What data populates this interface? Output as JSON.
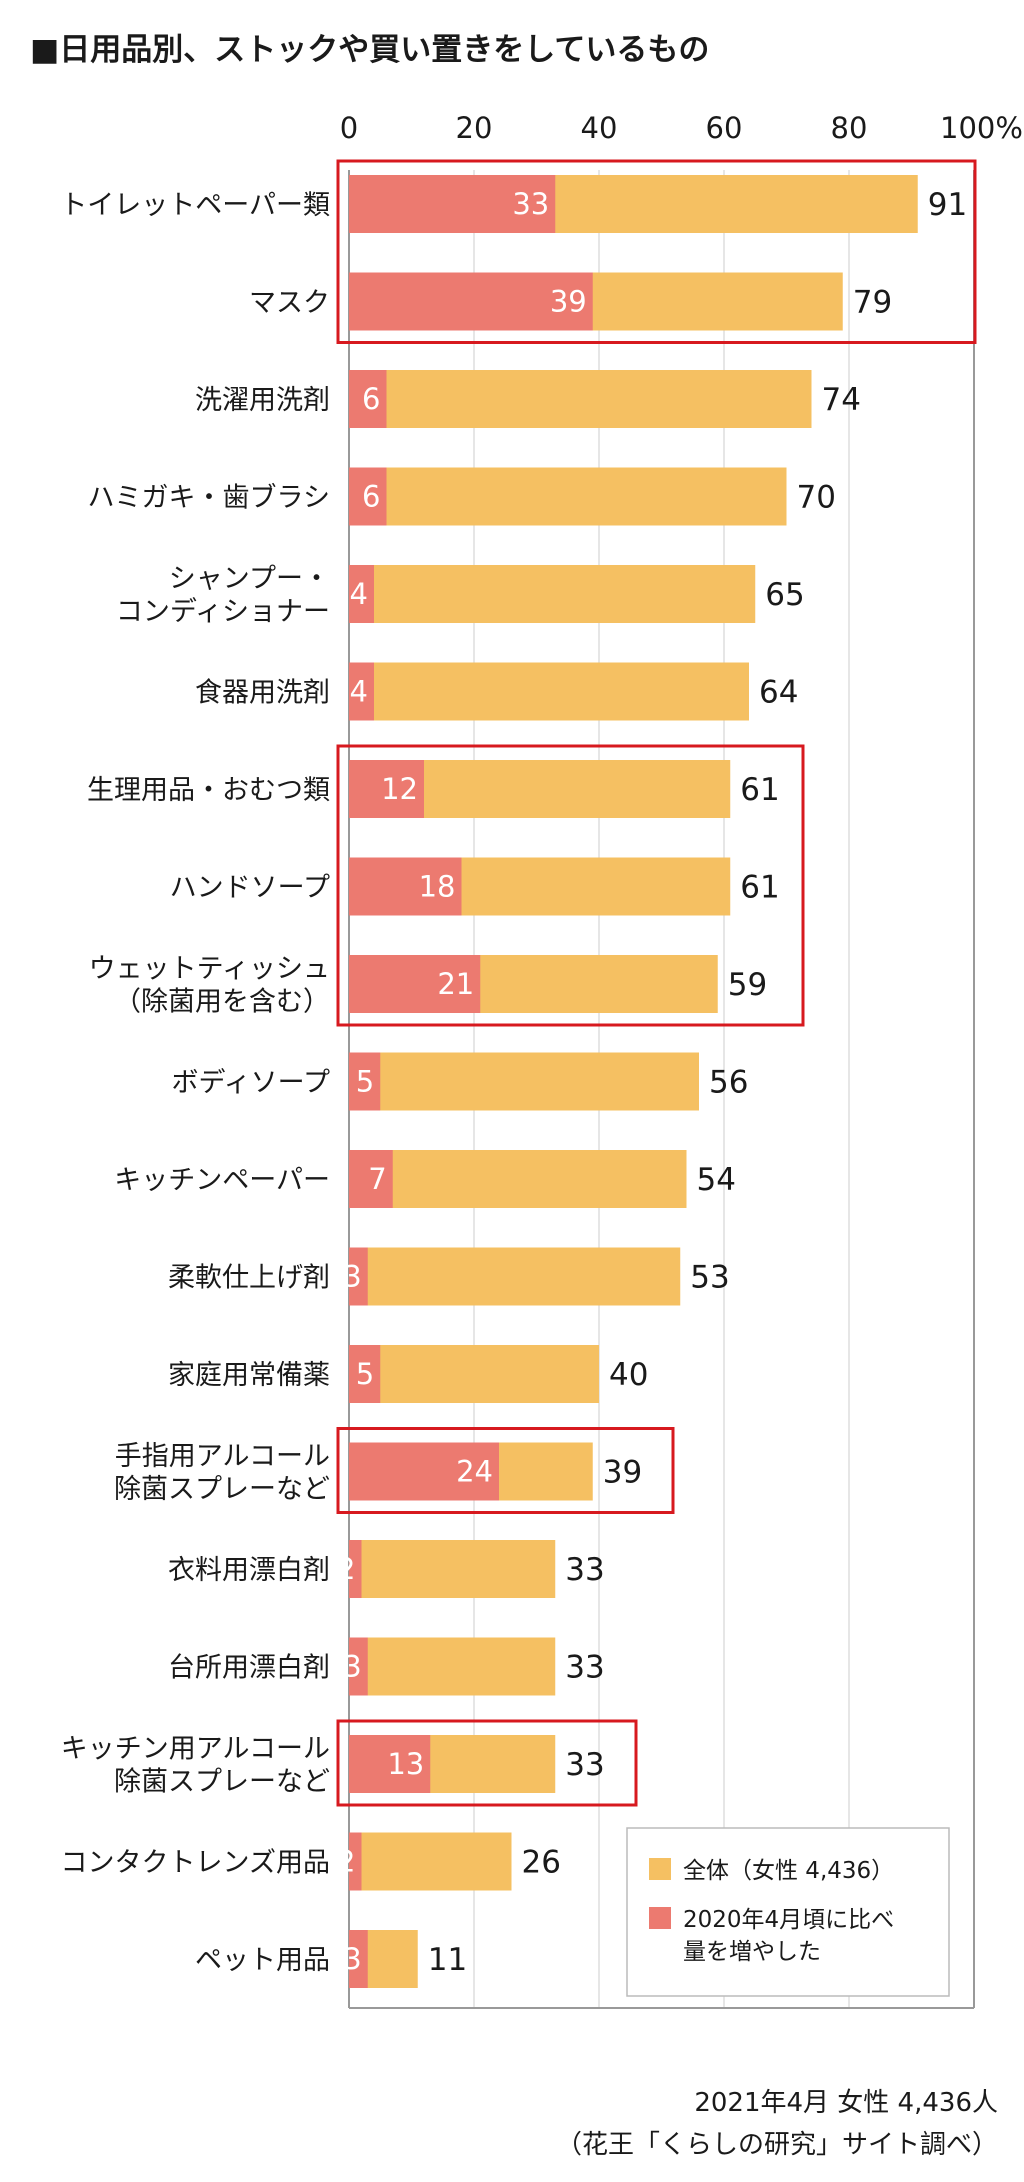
{
  "title": "■日用品別、ストックや買い置きをしているもの",
  "footer": {
    "date": "2021年4月 女性 4,436人",
    "source": "（花王「くらしの研究」サイト調べ）"
  },
  "colors": {
    "total": "#F5C062",
    "increased": "#EC7A70",
    "highlight": "#D7191F",
    "axis": "#999999",
    "grid": "#DDDDDD"
  },
  "chart_data": {
    "type": "bar",
    "orientation": "horizontal",
    "xlim": [
      0,
      100
    ],
    "xticks": [
      "0",
      "20",
      "40",
      "60",
      "80",
      "100%"
    ],
    "grid": true,
    "legend_position": "bottom-right",
    "categories": [
      [
        "トイレットペーパー類"
      ],
      [
        "マスク"
      ],
      [
        "洗濯用洗剤"
      ],
      [
        "ハミガキ・歯ブラシ"
      ],
      [
        "シャンプー・",
        "コンディショナー"
      ],
      [
        "食器用洗剤"
      ],
      [
        "生理用品・おむつ類"
      ],
      [
        "ハンドソープ"
      ],
      [
        "ウェットティッシュ",
        "（除菌用を含む）"
      ],
      [
        "ボディソープ"
      ],
      [
        "キッチンペーパー"
      ],
      [
        "柔軟仕上げ剤"
      ],
      [
        "家庭用常備薬"
      ],
      [
        "手指用アルコール",
        "除菌スプレーなど"
      ],
      [
        "衣料用漂白剤"
      ],
      [
        "台所用漂白剤"
      ],
      [
        "キッチン用アルコール",
        "除菌スプレーなど"
      ],
      [
        "コンタクトレンズ用品"
      ],
      [
        "ペット用品"
      ]
    ],
    "series": [
      {
        "name": "全体（女性 4,436）",
        "values": [
          91,
          79,
          74,
          70,
          65,
          64,
          61,
          61,
          59,
          56,
          54,
          53,
          40,
          39,
          33,
          33,
          33,
          26,
          11
        ]
      },
      {
        "name": "2020年4月頃に比べ量を増やした",
        "values": [
          33,
          39,
          6,
          6,
          4,
          4,
          12,
          18,
          21,
          5,
          7,
          3,
          5,
          24,
          2,
          3,
          13,
          2,
          3
        ]
      }
    ],
    "highlighted_groups": [
      [
        0,
        1
      ],
      [
        6,
        8
      ],
      [
        13,
        13
      ],
      [
        16,
        16
      ]
    ]
  }
}
